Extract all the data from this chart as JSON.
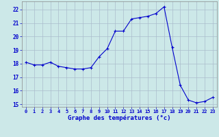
{
  "x": [
    0,
    1,
    2,
    3,
    4,
    5,
    6,
    7,
    8,
    9,
    10,
    11,
    12,
    13,
    14,
    15,
    16,
    17,
    18,
    19,
    20,
    21,
    22,
    23
  ],
  "y": [
    18.1,
    17.9,
    17.9,
    18.1,
    17.8,
    17.7,
    17.6,
    17.6,
    17.7,
    18.5,
    19.1,
    20.4,
    20.4,
    21.3,
    21.4,
    21.5,
    21.7,
    22.2,
    19.2,
    16.4,
    15.3,
    15.1,
    15.2,
    15.5
  ],
  "line_color": "#0000cc",
  "marker": "+",
  "marker_size": 3,
  "bg_color": "#cce8e8",
  "grid_color": "#aabccc",
  "xlabel": "Graphe des températures (°c)",
  "xlabel_color": "#0000cc",
  "tick_color": "#0000cc",
  "ylim": [
    14.8,
    22.6
  ],
  "yticks": [
    15,
    16,
    17,
    18,
    19,
    20,
    21,
    22
  ],
  "xlim": [
    -0.5,
    23.5
  ],
  "xticks": [
    0,
    1,
    2,
    3,
    4,
    5,
    6,
    7,
    8,
    9,
    10,
    11,
    12,
    13,
    14,
    15,
    16,
    17,
    18,
    19,
    20,
    21,
    22,
    23
  ]
}
